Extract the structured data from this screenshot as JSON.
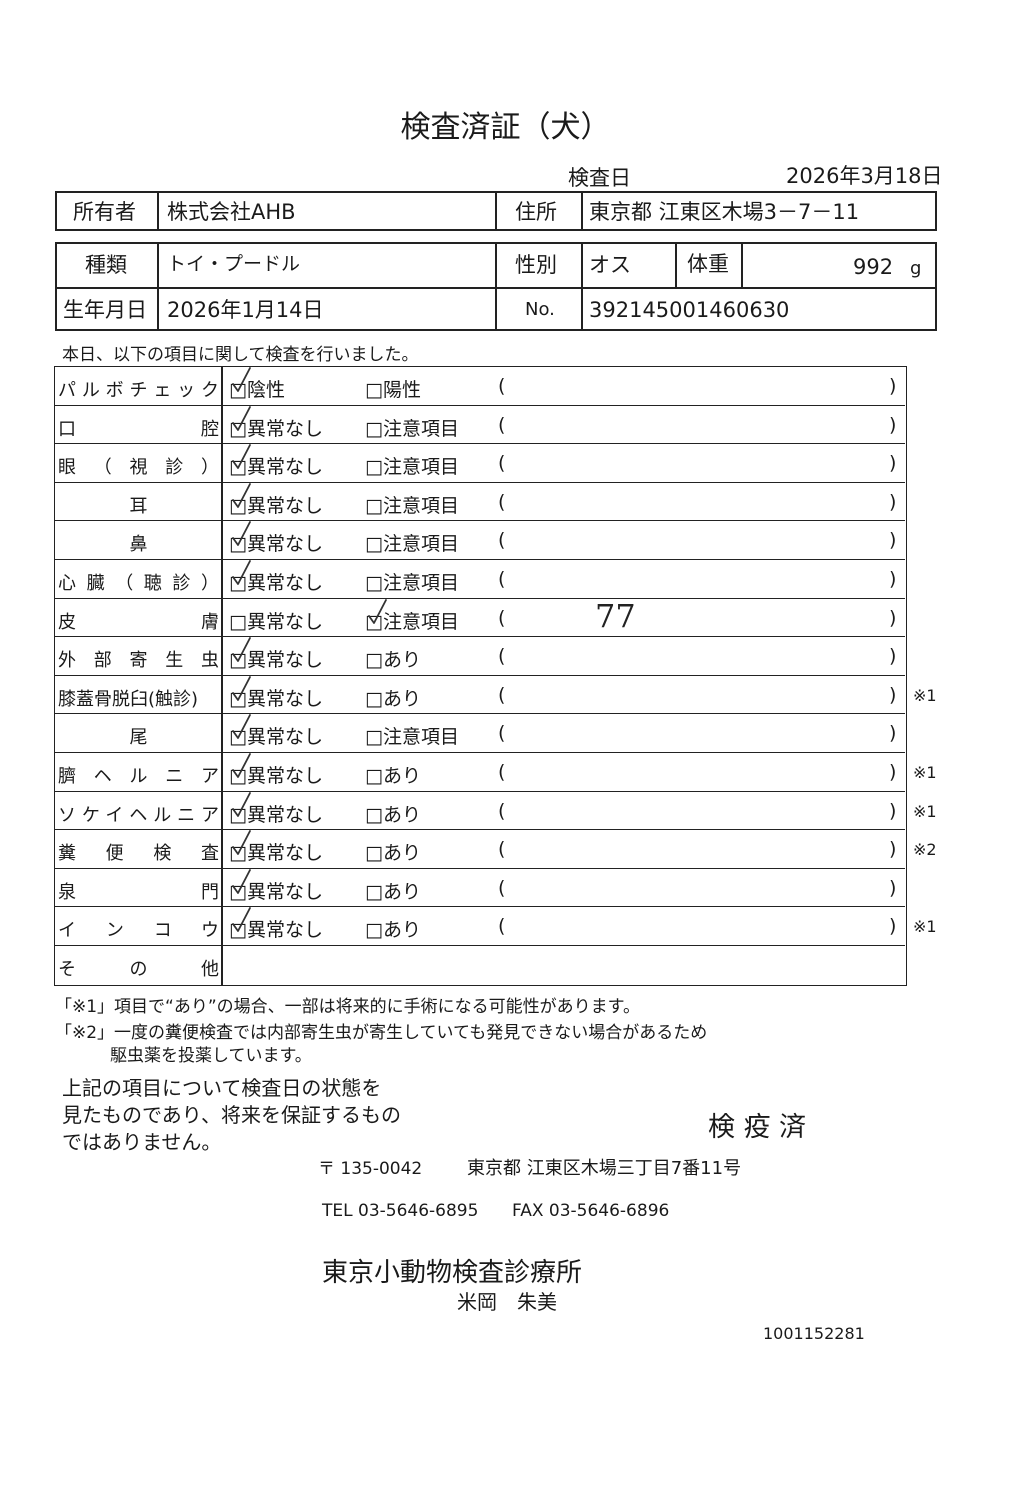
{
  "title": "検査済証（犬）",
  "exam_date_label": "検査日",
  "exam_date": "2026年3月18日",
  "owner": {
    "label": "所有者",
    "value": "株式会社AHB",
    "address_label": "住所",
    "address": "東京都 江東区木場3－7－11"
  },
  "pet": {
    "type_label": "種類",
    "type": "トイ・プードル",
    "sex_label": "性別",
    "sex": "オス",
    "weight_label": "体重",
    "weight": "992",
    "weight_unit": "g",
    "birth_label": "生年月日",
    "birth": "2026年1月14日",
    "no_label": "No.",
    "no": "392145001460630"
  },
  "intro": "本日、以下の項目に関して検査を行いました。",
  "items": [
    {
      "label": "パルボチェック",
      "opt1": "□陰性",
      "opt2": "□陽性",
      "checked": 1,
      "comment": "",
      "note": ""
    },
    {
      "label": "口腔",
      "opt1": "□異常なし",
      "opt2": "□注意項目",
      "checked": 1,
      "comment": "",
      "note": ""
    },
    {
      "label": "眼（視診）",
      "opt1": "□異常なし",
      "opt2": "□注意項目",
      "checked": 1,
      "comment": "",
      "note": ""
    },
    {
      "label": "耳",
      "opt1": "□異常なし",
      "opt2": "□注意項目",
      "checked": 1,
      "comment": "",
      "note": ""
    },
    {
      "label": "鼻",
      "opt1": "□異常なし",
      "opt2": "□注意項目",
      "checked": 1,
      "comment": "",
      "note": ""
    },
    {
      "label": "心臓（聴診）",
      "opt1": "□異常なし",
      "opt2": "□注意項目",
      "checked": 1,
      "comment": "",
      "note": ""
    },
    {
      "label": "皮膚",
      "opt1": "□異常なし",
      "opt2": "□注意項目",
      "checked": 2,
      "comment": "77",
      "note": ""
    },
    {
      "label": "外部寄生虫",
      "opt1": "□異常なし",
      "opt2": "□あり",
      "checked": 1,
      "comment": "",
      "note": ""
    },
    {
      "label": "膝蓋骨脱臼(触診)",
      "opt1": "□異常なし",
      "opt2": "□あり",
      "checked": 1,
      "comment": "",
      "note": "※1"
    },
    {
      "label": "尾",
      "opt1": "□異常なし",
      "opt2": "□注意項目",
      "checked": 1,
      "comment": "",
      "note": ""
    },
    {
      "label": "臍ヘルニア",
      "opt1": "□異常なし",
      "opt2": "□あり",
      "checked": 1,
      "comment": "",
      "note": "※1"
    },
    {
      "label": "ソケイヘルニア",
      "opt1": "□異常なし",
      "opt2": "□あり",
      "checked": 1,
      "comment": "",
      "note": "※1"
    },
    {
      "label": "糞便検査",
      "opt1": "□異常なし",
      "opt2": "□あり",
      "checked": 1,
      "comment": "",
      "note": "※2"
    },
    {
      "label": "泉門",
      "opt1": "□異常なし",
      "opt2": "□あり",
      "checked": 1,
      "comment": "",
      "note": ""
    },
    {
      "label": "インコウ",
      "opt1": "□異常なし",
      "opt2": "□あり",
      "checked": 1,
      "comment": "",
      "note": "※1"
    },
    {
      "label": "その他",
      "opt1": "",
      "opt2": "",
      "checked": 0,
      "comment": "",
      "note": ""
    }
  ],
  "footnote1": "「※1」項目で“あり”の場合、一部は将来的に手術になる可能性があります。",
  "footnote2a": "「※2」一度の糞便検査では内部寄生虫が寄生していても発見できない場合があるため",
  "footnote2b": "駆虫薬を投薬しています。",
  "disclaimer": [
    "上記の項目について検査日の状態を",
    "見たものであり、将来を保証するもの",
    "ではありません。"
  ],
  "stamp": "検 疫 済",
  "clinic": {
    "postal": "〒 135-0042",
    "address": "東京都 江東区木場三丁目7番11号",
    "tel": "TEL 03-5646-6895",
    "fax": "FAX 03-5646-6896",
    "name": "東京小動物検査診療所",
    "person": "米岡　朱美"
  },
  "doc_number": "1001152281"
}
